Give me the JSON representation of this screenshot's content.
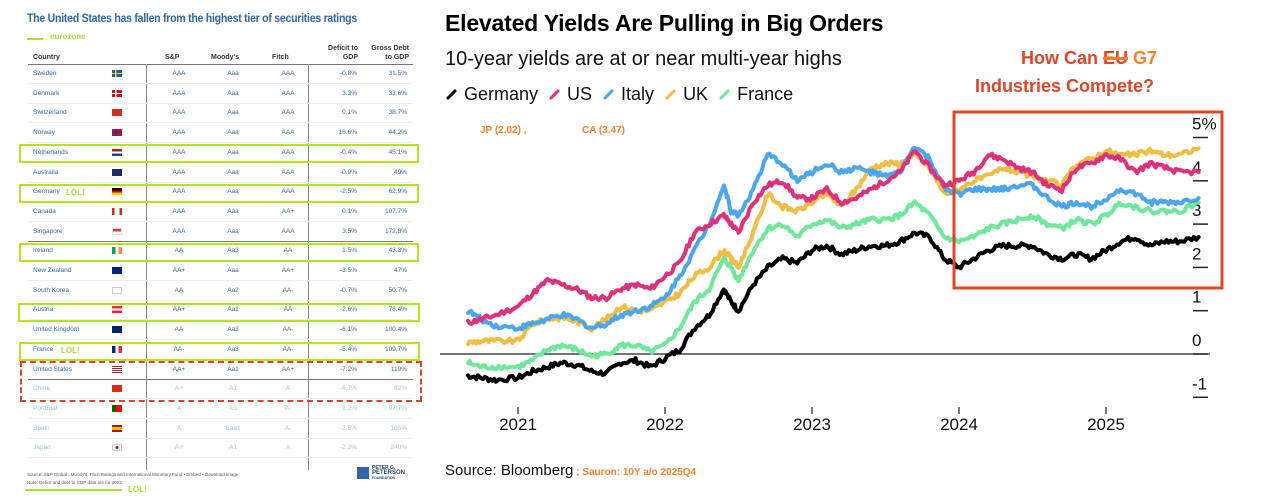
{
  "table": {
    "title": "The United States has fallen from the highest tier of securities ratings",
    "legend_label": "eurozone",
    "columns": [
      "Country",
      "S&P",
      "Moody's",
      "Fitch",
      "Deficit to GDP",
      "Gross Debt to GDP"
    ],
    "rows": [
      {
        "country": "Sweden",
        "flag": "sweden-flag",
        "sp": "AAA",
        "moodys": "Aaa",
        "fitch": "AAA",
        "deficit": "-0.8%",
        "debt": "31.5%"
      },
      {
        "country": "Denmark",
        "flag": "denmark-flag",
        "sp": "AAA",
        "moodys": "Aaa",
        "fitch": "AAA",
        "deficit": "3.3%",
        "debt": "33.6%"
      },
      {
        "country": "Switzerland",
        "flag": "switzerland-flag",
        "sp": "AAA",
        "moodys": "Aaa",
        "fitch": "AAA",
        "deficit": "0.1%",
        "debt": "38.7%"
      },
      {
        "country": "Norway",
        "flag": "norway-flag",
        "sp": "AAA",
        "moodys": "Aaa",
        "fitch": "AAA",
        "deficit": "16.6%",
        "debt": "44.2%"
      },
      {
        "country": "Netherlands",
        "flag": "netherlands-flag",
        "sp": "AAA",
        "moodys": "Aaa",
        "fitch": "AAA",
        "deficit": "-0.4%",
        "debt": "45.1%"
      },
      {
        "country": "Australia",
        "flag": "australia-flag",
        "sp": "AAA",
        "moodys": "Aaa",
        "fitch": "AAA",
        "deficit": "-0.9%",
        "debt": "49%"
      },
      {
        "country": "Germany",
        "flag": "germany-flag",
        "sp": "AAA",
        "moodys": "Aaa",
        "fitch": "AAA",
        "deficit": "-2.5%",
        "debt": "62.9%"
      },
      {
        "country": "Canada",
        "flag": "canada-flag",
        "sp": "AAA",
        "moodys": "Aaa",
        "fitch": "AA+",
        "deficit": "0.1%",
        "debt": "107.7%"
      },
      {
        "country": "Singapore",
        "flag": "singapore-flag",
        "sp": "AAA",
        "moodys": "Aaa",
        "fitch": "AAA",
        "deficit": "3.5%",
        "debt": "172.8%"
      },
      {
        "country": "Ireland",
        "flag": "ireland-flag",
        "sp": "AA",
        "moodys": "Aa3",
        "fitch": "AA",
        "deficit": "1.5%",
        "debt": "43.3%"
      },
      {
        "country": "New Zealand",
        "flag": "new-zealand-flag",
        "sp": "AA+",
        "moodys": "Aaa",
        "fitch": "AA+",
        "deficit": "-3.5%",
        "debt": "47%"
      },
      {
        "country": "South Korea",
        "flag": "south-korea-flag",
        "sp": "AA",
        "moodys": "Aa2",
        "fitch": "AA-",
        "deficit": "-0.7%",
        "debt": "50.7%"
      },
      {
        "country": "Austria",
        "flag": "austria-flag",
        "sp": "AA+",
        "moodys": "Aa1",
        "fitch": "AA",
        "deficit": "-2.6%",
        "debt": "78.4%"
      },
      {
        "country": "United Kingdom",
        "flag": "uk-flag",
        "sp": "AA",
        "moodys": "Aa3",
        "fitch": "AA-",
        "deficit": "-6.1%",
        "debt": "100.4%"
      },
      {
        "country": "France",
        "flag": "france-flag",
        "sp": "AA-",
        "moodys": "Aa3",
        "fitch": "AA-",
        "deficit": "-5.4%",
        "debt": "109.7%"
      },
      {
        "country": "United States",
        "flag": "us-flag",
        "sp": "AA+",
        "moodys": "Aa1",
        "fitch": "AA+",
        "deficit": "-7.2%",
        "debt": "119%"
      },
      {
        "country": "China",
        "flag": "china-flag",
        "sp": "A+",
        "moodys": "A1",
        "fitch": "A",
        "deficit": "-6.7%",
        "debt": "82%"
      },
      {
        "country": "Portugal",
        "flag": "portugal-flag",
        "sp": "A",
        "moodys": "A3",
        "fitch": "A-",
        "deficit": "1.2%",
        "debt": "97.7%"
      },
      {
        "country": "Spain",
        "flag": "spain-flag",
        "sp": "A",
        "moodys": "Baa1",
        "fitch": "A-",
        "deficit": "-3.5%",
        "debt": "105%"
      },
      {
        "country": "Japan",
        "flag": "japan-flag",
        "sp": "A+",
        "moodys": "A1",
        "fitch": "A",
        "deficit": "-2.3%",
        "debt": "240%"
      }
    ],
    "annotations": {
      "germany": "LOL!",
      "france": "LOL!",
      "footer": "LOL!"
    },
    "source_line": "Source: S&P Global , Moody's, Fitch Ratings and International Monetary Fund  •  Embed  •  Download image",
    "note_line": "Note: Deficit and debt to GDP data are for 2023.",
    "logo_text": [
      "PETER G.",
      "PETERSON",
      "FOUNDATION"
    ]
  },
  "chart": {
    "annot_jp": "JP (2.02) ,",
    "annot_ca": "CA (3.47)",
    "question_prefix": "How Can ",
    "question_struck": "EU",
    "question_g7": " G7",
    "question_line2": "Industries Compete?",
    "source": "Source: Bloomberg",
    "source_extra": " ;  Sauron: 10Y a/o 2025Q4"
  },
  "colors": {
    "Germany": "#000000",
    "US": "#e0307a",
    "Italy": "#4aa6ef",
    "UK": "#f2bd42",
    "France": "#6ee89a",
    "highlight_green": "#b5e61d",
    "highlight_red": "#e0452a",
    "annotation_orange": "#ff7f27"
  },
  "chart_data": {
    "type": "line",
    "title": "Elevated Yields Are Pulling in Big Orders",
    "subtitle": "10-year yields are at or near multi-year highs",
    "xlabel": "",
    "ylabel": "%",
    "xlim": [
      2020.65,
      2025.75
    ],
    "ylim": [
      -1.3,
      5.3
    ],
    "x_ticks": [
      2021,
      2022,
      2023,
      2024,
      2025
    ],
    "y_ticks": [
      -1,
      0,
      1,
      2,
      3,
      4,
      5
    ],
    "y_tick_labels": [
      "-1",
      "0",
      "1",
      "2",
      "3",
      "4",
      "5%"
    ],
    "legend": [
      "Germany",
      "US",
      "Italy",
      "UK",
      "France"
    ],
    "legend_position": "top-left",
    "grid": false,
    "highlight_box": {
      "x_range": [
        2024.0,
        2025.8
      ],
      "y_range": [
        1.5,
        5.6
      ]
    },
    "x": [
      2020.66,
      2020.75,
      2020.85,
      2021.0,
      2021.1,
      2021.2,
      2021.3,
      2021.4,
      2021.5,
      2021.6,
      2021.7,
      2021.8,
      2021.9,
      2022.0,
      2022.1,
      2022.2,
      2022.3,
      2022.4,
      2022.45,
      2022.5,
      2022.6,
      2022.7,
      2022.8,
      2022.9,
      2023.0,
      2023.1,
      2023.2,
      2023.3,
      2023.4,
      2023.5,
      2023.6,
      2023.7,
      2023.8,
      2023.9,
      2024.0,
      2024.1,
      2024.2,
      2024.3,
      2024.4,
      2024.5,
      2024.6,
      2024.7,
      2024.8,
      2024.9,
      2025.0,
      2025.1,
      2025.2,
      2025.3,
      2025.4,
      2025.5,
      2025.63
    ],
    "series": [
      {
        "name": "Germany",
        "values": [
          -0.5,
          -0.55,
          -0.6,
          -0.55,
          -0.4,
          -0.3,
          -0.2,
          -0.25,
          -0.4,
          -0.45,
          -0.2,
          -0.15,
          -0.3,
          -0.1,
          0.1,
          0.6,
          0.9,
          1.5,
          1.2,
          1.0,
          1.6,
          2.0,
          2.2,
          2.1,
          2.4,
          2.5,
          2.3,
          2.4,
          2.5,
          2.5,
          2.6,
          2.8,
          2.7,
          2.2,
          2.0,
          2.2,
          2.4,
          2.5,
          2.5,
          2.5,
          2.3,
          2.2,
          2.3,
          2.2,
          2.4,
          2.6,
          2.7,
          2.5,
          2.6,
          2.6,
          2.7
        ]
      },
      {
        "name": "US",
        "values": [
          0.72,
          0.8,
          0.9,
          1.1,
          1.4,
          1.7,
          1.6,
          1.5,
          1.3,
          1.3,
          1.5,
          1.6,
          1.5,
          1.8,
          2.1,
          2.8,
          3.0,
          3.2,
          3.0,
          2.8,
          3.5,
          3.9,
          4.0,
          3.6,
          3.6,
          3.8,
          3.5,
          3.6,
          3.8,
          4.0,
          4.2,
          4.7,
          4.3,
          3.9,
          4.0,
          4.2,
          4.6,
          4.5,
          4.3,
          4.2,
          3.9,
          3.8,
          4.3,
          4.4,
          4.6,
          4.5,
          4.2,
          4.4,
          4.3,
          4.2,
          4.2
        ]
      },
      {
        "name": "Italy",
        "values": [
          1.0,
          0.8,
          0.65,
          0.6,
          0.7,
          0.8,
          0.9,
          0.8,
          0.6,
          0.7,
          0.9,
          1.0,
          1.1,
          1.3,
          1.8,
          2.4,
          3.0,
          3.9,
          3.3,
          3.2,
          3.8,
          4.6,
          4.4,
          4.0,
          4.2,
          4.4,
          4.2,
          4.3,
          4.2,
          4.1,
          4.2,
          4.8,
          4.5,
          3.8,
          3.7,
          3.8,
          3.8,
          3.8,
          3.9,
          3.9,
          3.6,
          3.4,
          3.5,
          3.4,
          3.6,
          3.8,
          3.7,
          3.5,
          3.5,
          3.5,
          3.6
        ]
      },
      {
        "name": "UK",
        "values": [
          0.26,
          0.3,
          0.3,
          0.3,
          0.7,
          0.8,
          0.85,
          0.75,
          0.6,
          0.8,
          1.1,
          1.0,
          1.0,
          1.2,
          1.4,
          1.8,
          2.0,
          2.4,
          2.2,
          2.0,
          2.8,
          3.7,
          3.4,
          3.3,
          3.5,
          3.7,
          3.4,
          3.8,
          4.3,
          4.4,
          4.4,
          4.6,
          4.3,
          3.7,
          3.8,
          4.0,
          4.1,
          4.3,
          4.2,
          4.1,
          4.0,
          3.9,
          4.4,
          4.5,
          4.7,
          4.6,
          4.6,
          4.7,
          4.6,
          4.6,
          4.75
        ]
      },
      {
        "name": "France",
        "values": [
          -0.2,
          -0.3,
          -0.3,
          -0.3,
          -0.15,
          0.1,
          0.2,
          0.1,
          -0.05,
          0.0,
          0.2,
          0.2,
          0.05,
          0.2,
          0.6,
          1.2,
          1.5,
          2.2,
          2.0,
          1.7,
          2.4,
          2.9,
          3.0,
          2.7,
          3.0,
          3.1,
          2.9,
          3.0,
          3.1,
          3.1,
          3.2,
          3.5,
          3.2,
          2.7,
          2.6,
          2.7,
          2.9,
          3.0,
          3.1,
          3.2,
          3.0,
          2.9,
          3.1,
          3.0,
          3.2,
          3.5,
          3.4,
          3.3,
          3.3,
          3.3,
          3.5
        ]
      }
    ]
  }
}
